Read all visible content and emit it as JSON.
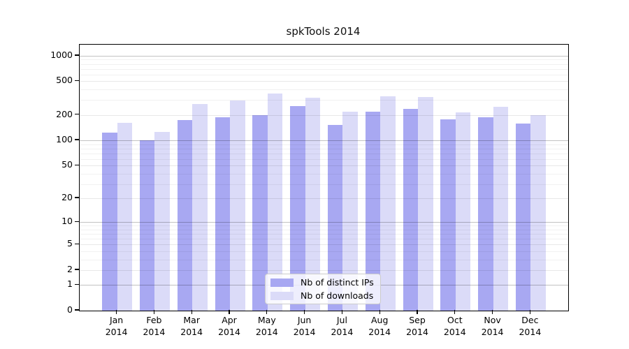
{
  "chart_data": {
    "type": "bar",
    "title": "spkTools 2014",
    "xlabel": "",
    "ylabel": "",
    "yscale": "log1p",
    "ylim": [
      0,
      1350
    ],
    "yticks": [
      0,
      1,
      2,
      5,
      10,
      20,
      50,
      100,
      200,
      500,
      1000
    ],
    "grid": "on",
    "legend_position": "lower center",
    "categories": [
      "Jan 2014",
      "Feb 2014",
      "Mar 2014",
      "Apr 2014",
      "May 2014",
      "Jun 2014",
      "Jul 2014",
      "Aug 2014",
      "Sep 2014",
      "Oct 2014",
      "Nov 2014",
      "Dec 2014"
    ],
    "series": [
      {
        "name": "Nb of distinct IPs",
        "color": "#a8a8f2",
        "values": [
          123,
          101,
          175,
          187,
          198,
          253,
          153,
          219,
          234,
          176,
          187,
          157
        ]
      },
      {
        "name": "Nb of downloads",
        "color": "#dbdbf8",
        "values": [
          160,
          125,
          271,
          296,
          357,
          317,
          217,
          335,
          325,
          216,
          248,
          198
        ]
      }
    ]
  }
}
